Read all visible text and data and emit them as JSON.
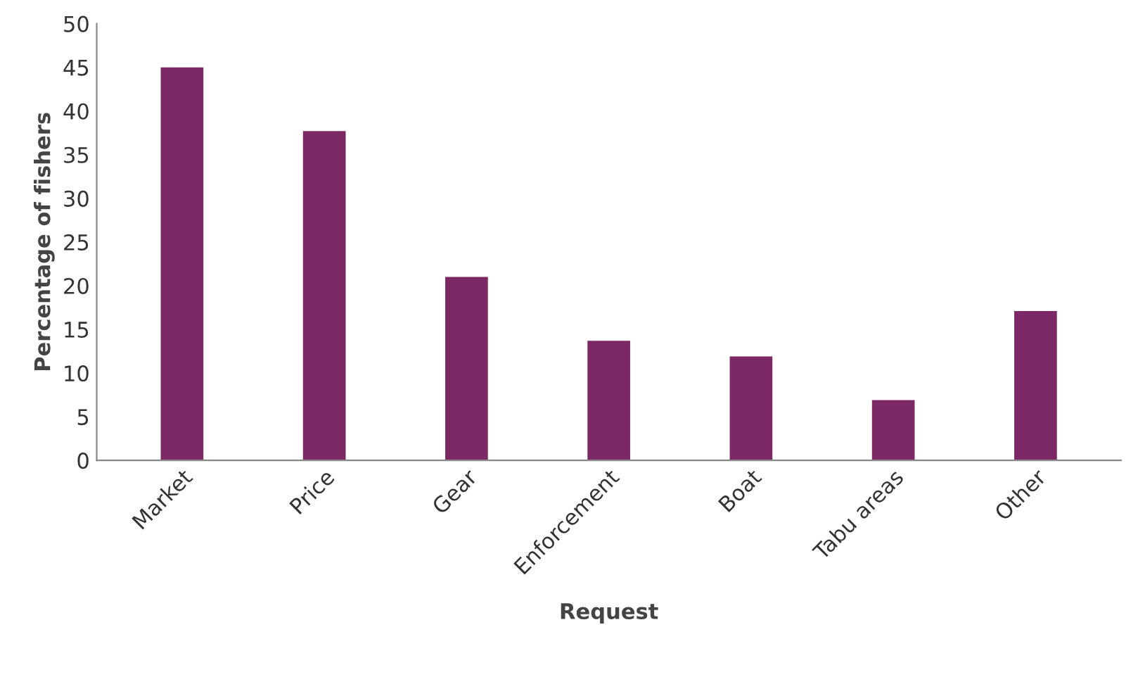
{
  "chart_data": {
    "type": "bar",
    "categories": [
      "Market",
      "Price",
      "Gear",
      "Enforcement",
      "Boat",
      "Tabu areas",
      "Other"
    ],
    "values": [
      45.0,
      37.7,
      21.0,
      13.7,
      11.9,
      6.9,
      17.1
    ],
    "color": "#7b2865",
    "xlabel": "Request",
    "ylabel": "Percentage of fishers",
    "ylim": [
      0,
      50
    ],
    "yticks": [
      0,
      5,
      10,
      15,
      20,
      25,
      30,
      35,
      40,
      45,
      50
    ],
    "grid": false,
    "legend": false
  }
}
